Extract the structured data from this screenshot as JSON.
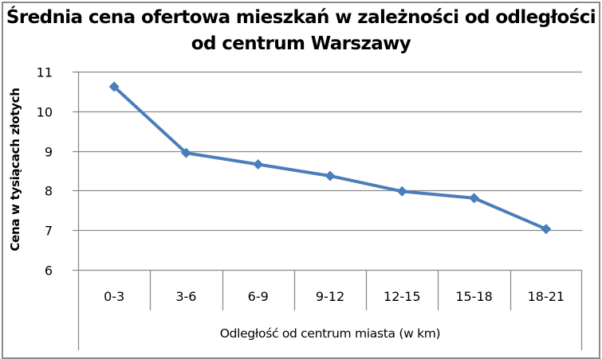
{
  "chart_data": {
    "type": "line",
    "title": "Średnia cena ofertowa mieszkań w zależności od odległości od centrum Warszawy",
    "title_lines": [
      "Średnia cena ofertowa mieszkań w zależności od odległości",
      "od centrum Warszawy"
    ],
    "xlabel": "Odległość od centrum miasta (w km)",
    "ylabel": "Cena w tysiącach złotych",
    "categories": [
      "0-3",
      "3-6",
      "6-9",
      "9-12",
      "12-15",
      "15-18",
      "18-21"
    ],
    "series": [
      {
        "name": "Średnia cena",
        "values": [
          10.62,
          8.95,
          8.66,
          8.37,
          7.98,
          7.81,
          7.03
        ],
        "color": "#4a7ebb",
        "marker": "diamond"
      }
    ],
    "ylim": [
      6,
      11
    ],
    "yticks": [
      6,
      7,
      8,
      9,
      10,
      11
    ],
    "grid": true,
    "legend": "none"
  },
  "colors": {
    "series": "#4a7ebb",
    "grid": "#8a8a8a",
    "border": "#8a8a8a",
    "text": "#000000"
  }
}
